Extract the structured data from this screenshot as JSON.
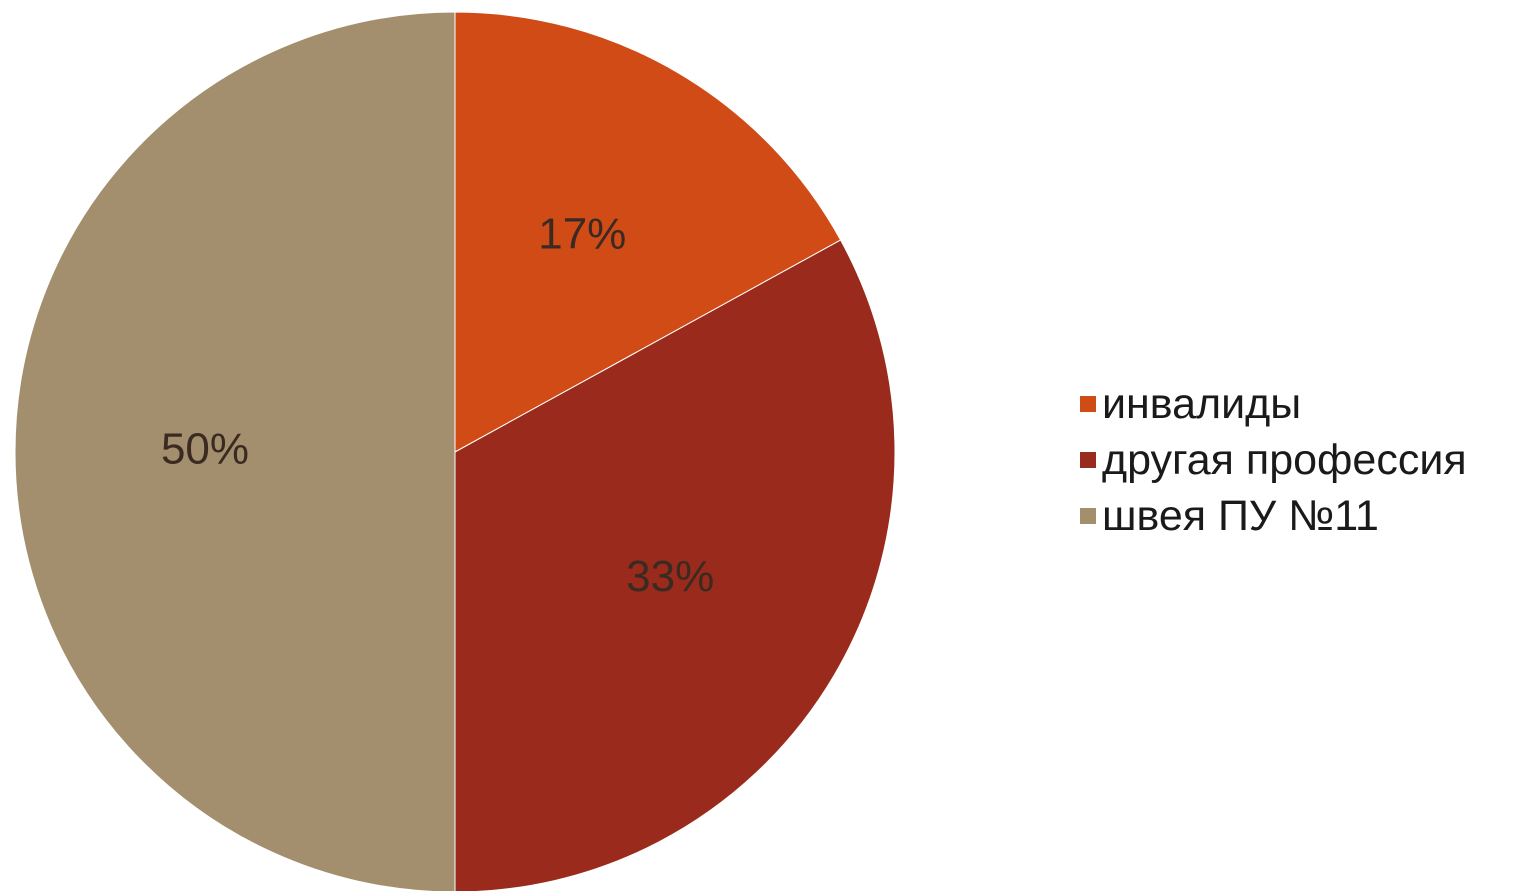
{
  "chart_data": {
    "type": "pie",
    "title": "",
    "start_angle_deg": 0,
    "direction": "clockwise",
    "legend_position": "right",
    "slices": [
      {
        "label": "инвалиды",
        "value": 17,
        "display": "17%",
        "color": "#d14b17"
      },
      {
        "label": "другая профессия",
        "value": 33,
        "display": "33%",
        "color": "#9a2a1c"
      },
      {
        "label": "швея ПУ №11",
        "value": 50,
        "display": "50%",
        "color": "#a38f6e"
      }
    ]
  }
}
